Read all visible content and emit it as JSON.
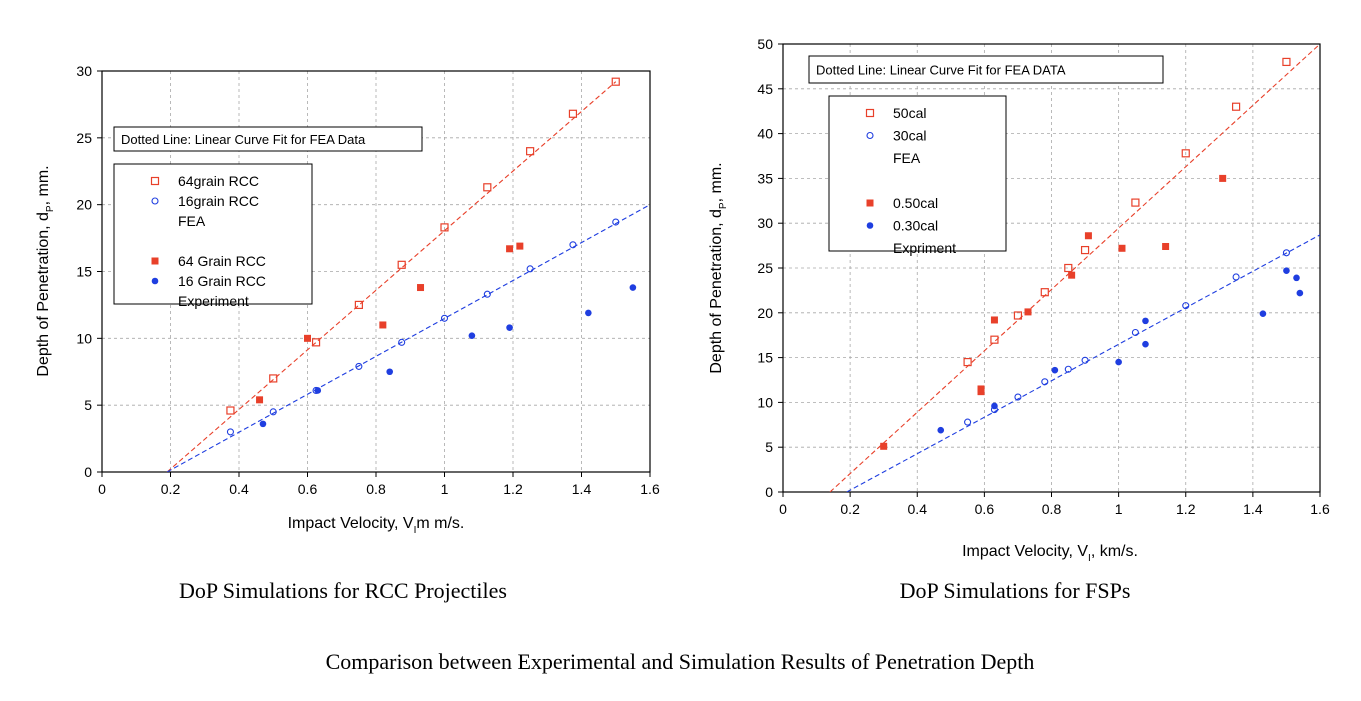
{
  "main_caption": "Comparison between Experimental and Simulation Results of Penetration Depth",
  "chart_data": [
    {
      "type": "scatter",
      "caption": "DoP Simulations for RCC Projectiles",
      "xlabel": "Impact Velocity, V",
      "xlabel_sub": "I",
      "xlabel_tail": "m m/s.",
      "ylabel": "Depth of Penetration, d",
      "ylabel_sub": "P",
      "ylabel_tail": ", mm.",
      "xlim": [
        0,
        1.6
      ],
      "ylim": [
        0,
        30
      ],
      "xticks": [
        "0",
        "0.2",
        "0.4",
        "0.6",
        "0.8",
        "1",
        "1.2",
        "1.4",
        "1.6"
      ],
      "yticks": [
        "0",
        "5",
        "10",
        "15",
        "20",
        "25",
        "30"
      ],
      "grid": true,
      "note": "Dotted Line: Linear Curve Fit for FEA Data",
      "legend": [
        {
          "label": "64grain RCC",
          "marker": "open-square",
          "color": "#e8402a"
        },
        {
          "label": "16grain RCC",
          "marker": "open-circle",
          "color": "#1f3ee0"
        },
        {
          "label": "FEA",
          "marker": "none",
          "color": "#000000"
        },
        {
          "label": "",
          "marker": "none",
          "color": "#000000"
        },
        {
          "label": "64 Grain RCC",
          "marker": "filled-square",
          "color": "#e8402a"
        },
        {
          "label": "16 Grain RCC",
          "marker": "filled-circle",
          "color": "#1f3ee0"
        },
        {
          "label": "Experiment",
          "marker": "none",
          "color": "#000000"
        }
      ],
      "series": [
        {
          "name": "64grain RCC",
          "kind": "open-square",
          "color": "#e8402a",
          "x": [
            0.375,
            0.5,
            0.625,
            0.75,
            0.875,
            1.0,
            1.125,
            1.25,
            1.375,
            1.5
          ],
          "y": [
            4.6,
            7.0,
            9.7,
            12.5,
            15.5,
            18.3,
            21.3,
            24.0,
            26.8,
            29.2
          ]
        },
        {
          "name": "16grain RCC",
          "kind": "open-circle",
          "color": "#1f3ee0",
          "x": [
            0.375,
            0.5,
            0.625,
            0.75,
            0.875,
            1.0,
            1.125,
            1.25,
            1.375,
            1.5
          ],
          "y": [
            3.0,
            4.5,
            6.1,
            7.9,
            9.7,
            11.5,
            13.3,
            15.2,
            17.0,
            18.7
          ]
        },
        {
          "name": "64 Grain RCC",
          "kind": "filled-square",
          "color": "#e8402a",
          "x": [
            0.46,
            0.6,
            0.82,
            0.93,
            1.19,
            1.22
          ],
          "y": [
            5.4,
            10.0,
            11.0,
            13.8,
            16.7,
            16.9
          ]
        },
        {
          "name": "16 Grain RCC",
          "kind": "filled-circle",
          "color": "#1f3ee0",
          "x": [
            0.47,
            0.63,
            0.84,
            1.08,
            1.19,
            1.42,
            1.55
          ],
          "y": [
            3.6,
            6.1,
            7.5,
            10.2,
            10.8,
            11.9,
            13.8
          ]
        }
      ],
      "fits": [
        {
          "color": "#e8402a",
          "x": [
            0.19,
            1.5
          ],
          "y": [
            0.0,
            29.2
          ]
        },
        {
          "color": "#1f3ee0",
          "x": [
            0.19,
            1.6
          ],
          "y": [
            0.0,
            20.0
          ]
        }
      ]
    },
    {
      "type": "scatter",
      "caption": "DoP Simulations for FSPs",
      "xlabel": "Impact Velocity, V",
      "xlabel_sub": "I",
      "xlabel_tail": ", km/s.",
      "ylabel": "Depth of Penetration, d",
      "ylabel_sub": "P",
      "ylabel_tail": ", mm.",
      "xlim": [
        0,
        1.6
      ],
      "ylim": [
        0,
        50
      ],
      "xticks": [
        "0",
        "0.2",
        "0.4",
        "0.6",
        "0.8",
        "1",
        "1.2",
        "1.4",
        "1.6"
      ],
      "yticks": [
        "0",
        "5",
        "10",
        "15",
        "20",
        "25",
        "30",
        "35",
        "40",
        "45",
        "50"
      ],
      "grid": true,
      "note": "Dotted Line: Linear Curve Fit for FEA DATA",
      "legend": [
        {
          "label": "50cal",
          "marker": "open-square",
          "color": "#e8402a"
        },
        {
          "label": "30cal",
          "marker": "open-circle",
          "color": "#1f3ee0"
        },
        {
          "label": "FEA",
          "marker": "none",
          "color": "#000000"
        },
        {
          "label": "",
          "marker": "none",
          "color": "#000000"
        },
        {
          "label": "0.50cal",
          "marker": "filled-square",
          "color": "#e8402a"
        },
        {
          "label": "0.30cal",
          "marker": "filled-circle",
          "color": "#1f3ee0"
        },
        {
          "label": "Expriment",
          "marker": "none",
          "color": "#000000"
        }
      ],
      "series": [
        {
          "name": "50cal",
          "kind": "open-square",
          "color": "#e8402a",
          "x": [
            0.55,
            0.63,
            0.7,
            0.78,
            0.85,
            0.9,
            1.05,
            1.2,
            1.35,
            1.5
          ],
          "y": [
            14.5,
            17.0,
            19.7,
            22.3,
            25.0,
            27.0,
            32.3,
            37.8,
            43.0,
            48.0
          ]
        },
        {
          "name": "30cal",
          "kind": "open-circle",
          "color": "#1f3ee0",
          "x": [
            0.55,
            0.63,
            0.7,
            0.78,
            0.85,
            0.9,
            1.05,
            1.2,
            1.35,
            1.5
          ],
          "y": [
            7.8,
            9.2,
            10.6,
            12.3,
            13.7,
            14.7,
            17.8,
            20.8,
            24.0,
            26.7
          ]
        },
        {
          "name": "0.50cal",
          "kind": "filled-square",
          "color": "#e8402a",
          "x": [
            0.3,
            0.59,
            0.59,
            0.63,
            0.73,
            0.86,
            0.91,
            1.01,
            1.14,
            1.31
          ],
          "y": [
            5.1,
            11.2,
            11.5,
            19.2,
            20.1,
            24.2,
            28.6,
            27.2,
            27.4,
            35.0
          ]
        },
        {
          "name": "0.30cal",
          "kind": "filled-circle",
          "color": "#1f3ee0",
          "x": [
            0.47,
            0.63,
            0.81,
            1.0,
            1.08,
            1.08,
            1.43,
            1.5,
            1.53,
            1.54
          ],
          "y": [
            6.9,
            9.6,
            13.6,
            14.5,
            16.5,
            19.1,
            19.9,
            24.7,
            23.9,
            22.2
          ]
        }
      ],
      "fits": [
        {
          "color": "#e8402a",
          "x": [
            0.14,
            1.6
          ],
          "y": [
            0.0,
            50.0
          ]
        },
        {
          "color": "#1f3ee0",
          "x": [
            0.19,
            1.6
          ],
          "y": [
            0.0,
            28.7
          ]
        }
      ]
    }
  ]
}
